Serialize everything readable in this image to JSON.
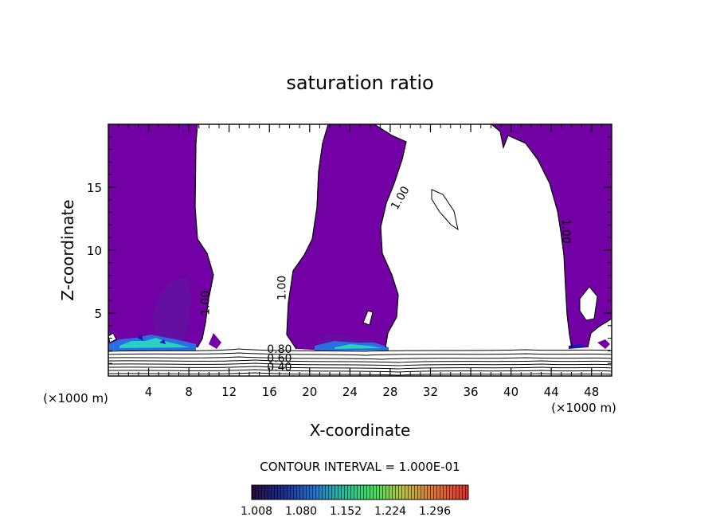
{
  "chart_data": {
    "type": "heatmap",
    "title": "saturation ratio",
    "xlabel": "X-coordinate",
    "ylabel": "Z-coordinate",
    "x_unit_label_left": "(×1000 m)",
    "x_unit_label_right": "(×1000 m)",
    "xlim": [
      0,
      50
    ],
    "ylim": [
      0,
      20
    ],
    "x_ticks": [
      4,
      8,
      12,
      16,
      20,
      24,
      28,
      32,
      36,
      40,
      44,
      48
    ],
    "y_ticks": [
      5,
      10,
      15
    ],
    "contour_interval_text": "CONTOUR INTERVAL = 1.000E-01",
    "contour_labels": [
      {
        "text": "1.00",
        "x": 10.0,
        "z": 5.8,
        "rotate": -90
      },
      {
        "text": "1.00",
        "x": 17.6,
        "z": 7.0,
        "rotate": -90
      },
      {
        "text": "1.00",
        "x": 29.3,
        "z": 14.0,
        "rotate": -60
      },
      {
        "text": "1.00",
        "x": 45.1,
        "z": 11.5,
        "rotate": 90
      },
      {
        "text": "0.80",
        "x": 17.0,
        "z": 1.85,
        "rotate": 0
      },
      {
        "text": "0.60",
        "x": 17.0,
        "z": 1.1,
        "rotate": 0
      },
      {
        "text": "0.40",
        "x": 17.0,
        "z": 0.4,
        "rotate": 0
      }
    ],
    "colorbar": {
      "ticks": [
        "1.008",
        "1.080",
        "1.152",
        "1.224",
        "1.296"
      ],
      "colors": [
        "#2a0b3d",
        "#1a2a8a",
        "#1f6fcf",
        "#1fbf9f",
        "#3fdf5f",
        "#bfbf3f",
        "#df6f2f",
        "#df2f2f"
      ]
    },
    "supersaturated_fill_color": "#7300a5",
    "low_level_highlight_colors": [
      "#2a6fe0",
      "#2ad0c0",
      "#1a1ab0"
    ]
  }
}
